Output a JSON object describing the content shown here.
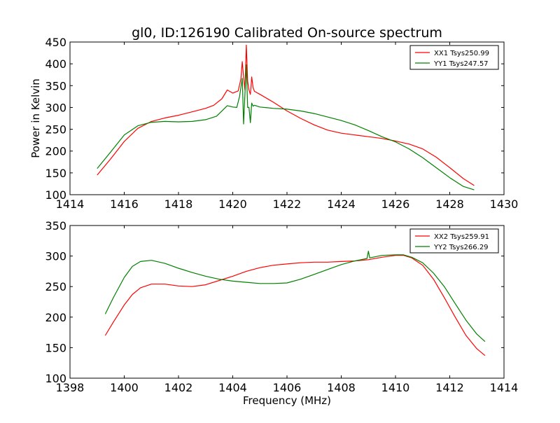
{
  "figure": {
    "title": "gl0, ID:126190 Calibrated On-source spectrum",
    "xlabel": "Frequency (MHz)"
  },
  "chart_data": [
    {
      "type": "line",
      "title": "gl0, ID:126190 Calibrated On-source spectrum",
      "xlabel": "",
      "ylabel": "Power in Kelvin",
      "xlim": [
        1414,
        1430
      ],
      "ylim": [
        100,
        450
      ],
      "xticks": [
        1414,
        1416,
        1418,
        1420,
        1422,
        1424,
        1426,
        1428,
        1430
      ],
      "yticks": [
        100,
        150,
        200,
        250,
        300,
        350,
        400,
        450
      ],
      "grid": false,
      "legend_position": "top-right",
      "series": [
        {
          "name": "XX1 Tsys250.99",
          "color": "#ff0000",
          "x": [
            1415.0,
            1415.5,
            1416.0,
            1416.5,
            1417.0,
            1417.5,
            1418.0,
            1418.5,
            1419.0,
            1419.3,
            1419.6,
            1419.8,
            1420.0,
            1420.2,
            1420.3,
            1420.35,
            1420.4,
            1420.45,
            1420.5,
            1420.55,
            1420.6,
            1420.65,
            1420.7,
            1420.75,
            1420.8,
            1421.0,
            1421.5,
            1422.0,
            1422.5,
            1423.0,
            1423.5,
            1424.0,
            1424.5,
            1425.0,
            1425.5,
            1426.0,
            1426.5,
            1427.0,
            1427.5,
            1428.0,
            1428.5,
            1428.9
          ],
          "y": [
            145,
            182,
            222,
            252,
            268,
            276,
            282,
            290,
            298,
            305,
            320,
            340,
            333,
            338,
            365,
            405,
            370,
            340,
            443,
            360,
            340,
            330,
            370,
            345,
            337,
            330,
            312,
            292,
            275,
            260,
            248,
            241,
            237,
            233,
            229,
            223,
            216,
            205,
            186,
            162,
            137,
            121
          ]
        },
        {
          "name": "YY1 Tsys247.57",
          "color": "#008000",
          "x": [
            1415.0,
            1415.5,
            1416.0,
            1416.5,
            1417.0,
            1417.5,
            1418.0,
            1418.5,
            1419.0,
            1419.4,
            1419.6,
            1419.8,
            1420.0,
            1420.15,
            1420.25,
            1420.35,
            1420.4,
            1420.45,
            1420.5,
            1420.55,
            1420.6,
            1420.65,
            1420.7,
            1420.75,
            1420.8,
            1421.0,
            1421.5,
            1422.0,
            1422.5,
            1423.0,
            1423.5,
            1424.0,
            1424.5,
            1425.0,
            1425.5,
            1426.0,
            1426.5,
            1427.0,
            1427.5,
            1428.0,
            1428.5,
            1428.9
          ],
          "y": [
            160,
            198,
            237,
            258,
            266,
            268,
            267,
            268,
            272,
            280,
            292,
            304,
            301,
            300,
            325,
            367,
            262,
            330,
            398,
            300,
            300,
            265,
            310,
            303,
            305,
            301,
            298,
            296,
            292,
            286,
            278,
            270,
            260,
            247,
            233,
            221,
            205,
            185,
            162,
            139,
            119,
            111
          ]
        }
      ]
    },
    {
      "type": "line",
      "title": "",
      "xlabel": "Frequency (MHz)",
      "ylabel": "",
      "xlim": [
        1398,
        1414
      ],
      "ylim": [
        100,
        350
      ],
      "xticks": [
        1398,
        1400,
        1402,
        1404,
        1406,
        1408,
        1410,
        1412,
        1414
      ],
      "yticks": [
        100,
        150,
        200,
        250,
        300,
        350
      ],
      "grid": false,
      "legend_position": "top-right",
      "series": [
        {
          "name": "XX2 Tsys259.91",
          "color": "#ff0000",
          "x": [
            1399.3,
            1399.6,
            1400.0,
            1400.3,
            1400.6,
            1401.0,
            1401.5,
            1402.0,
            1402.5,
            1403.0,
            1403.5,
            1404.0,
            1404.5,
            1405.0,
            1405.5,
            1406.0,
            1406.5,
            1407.0,
            1407.5,
            1408.0,
            1408.5,
            1409.0,
            1409.5,
            1410.0,
            1410.3,
            1410.6,
            1411.0,
            1411.4,
            1411.8,
            1412.2,
            1412.6,
            1413.0,
            1413.3
          ],
          "y": [
            170,
            192,
            220,
            237,
            248,
            254,
            254,
            251,
            250,
            253,
            260,
            267,
            275,
            281,
            285,
            287,
            289,
            290,
            290,
            291,
            292,
            294,
            298,
            301,
            301,
            297,
            285,
            262,
            232,
            200,
            170,
            148,
            137
          ]
        },
        {
          "name": "YY2 Tsys266.29",
          "color": "#008000",
          "x": [
            1399.3,
            1399.6,
            1400.0,
            1400.3,
            1400.6,
            1401.0,
            1401.5,
            1402.0,
            1402.5,
            1403.0,
            1403.5,
            1404.0,
            1404.5,
            1405.0,
            1405.5,
            1406.0,
            1406.5,
            1407.0,
            1407.5,
            1408.0,
            1408.5,
            1408.95,
            1409.0,
            1409.05,
            1409.5,
            1410.0,
            1410.3,
            1410.6,
            1411.0,
            1411.4,
            1411.8,
            1412.2,
            1412.6,
            1413.0,
            1413.3
          ],
          "y": [
            205,
            232,
            265,
            283,
            291,
            293,
            288,
            280,
            273,
            267,
            262,
            259,
            257,
            255,
            255,
            256,
            262,
            270,
            278,
            286,
            292,
            296,
            308,
            297,
            301,
            302,
            302,
            298,
            289,
            272,
            250,
            222,
            195,
            172,
            160
          ]
        }
      ]
    }
  ]
}
